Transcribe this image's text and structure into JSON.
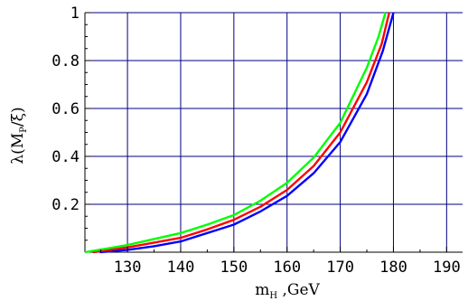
{
  "chart_data": {
    "type": "line",
    "title": "",
    "xlabel": {
      "main": "m",
      "sub": "H",
      "tail": " ,GeV"
    },
    "ylabel": {
      "lead": "λ(M",
      "sub": "P",
      "tail": "/ξ)"
    },
    "xlim": [
      122,
      193
    ],
    "ylim": [
      0,
      1
    ],
    "x_ticks": [
      130,
      140,
      150,
      160,
      170,
      180,
      190
    ],
    "x_tick_labels": [
      "130",
      "140",
      "150",
      "160",
      "170",
      "180",
      "190"
    ],
    "y_ticks": [
      0.2,
      0.4,
      0.6,
      0.8,
      1
    ],
    "y_tick_labels": [
      "0.2",
      "0.4",
      "0.6",
      "0.8",
      "1"
    ],
    "grid": true,
    "grid_color": "#000080",
    "series": [
      {
        "color": "#0000ff",
        "x": [
          124.8,
          130,
          135,
          140,
          145,
          150,
          155,
          160,
          165,
          170,
          175,
          178,
          180
        ],
        "y": [
          0.0,
          0.01,
          0.025,
          0.045,
          0.08,
          0.115,
          0.17,
          0.235,
          0.33,
          0.46,
          0.66,
          0.84,
          1.0
        ]
      },
      {
        "color": "#ff0000",
        "x": [
          123.5,
          130,
          135,
          140,
          145,
          150,
          155,
          160,
          165,
          170,
          175,
          177.8,
          179.2
        ],
        "y": [
          0.0,
          0.02,
          0.04,
          0.06,
          0.095,
          0.135,
          0.19,
          0.26,
          0.36,
          0.5,
          0.71,
          0.87,
          1.0
        ]
      },
      {
        "color": "#00ff00",
        "x": [
          122,
          130,
          135,
          140,
          145,
          150,
          155,
          160,
          165,
          170,
          175,
          177.2,
          178.5
        ],
        "y": [
          0.0,
          0.03,
          0.055,
          0.08,
          0.115,
          0.155,
          0.215,
          0.29,
          0.395,
          0.54,
          0.77,
          0.9,
          1.0
        ]
      }
    ]
  }
}
